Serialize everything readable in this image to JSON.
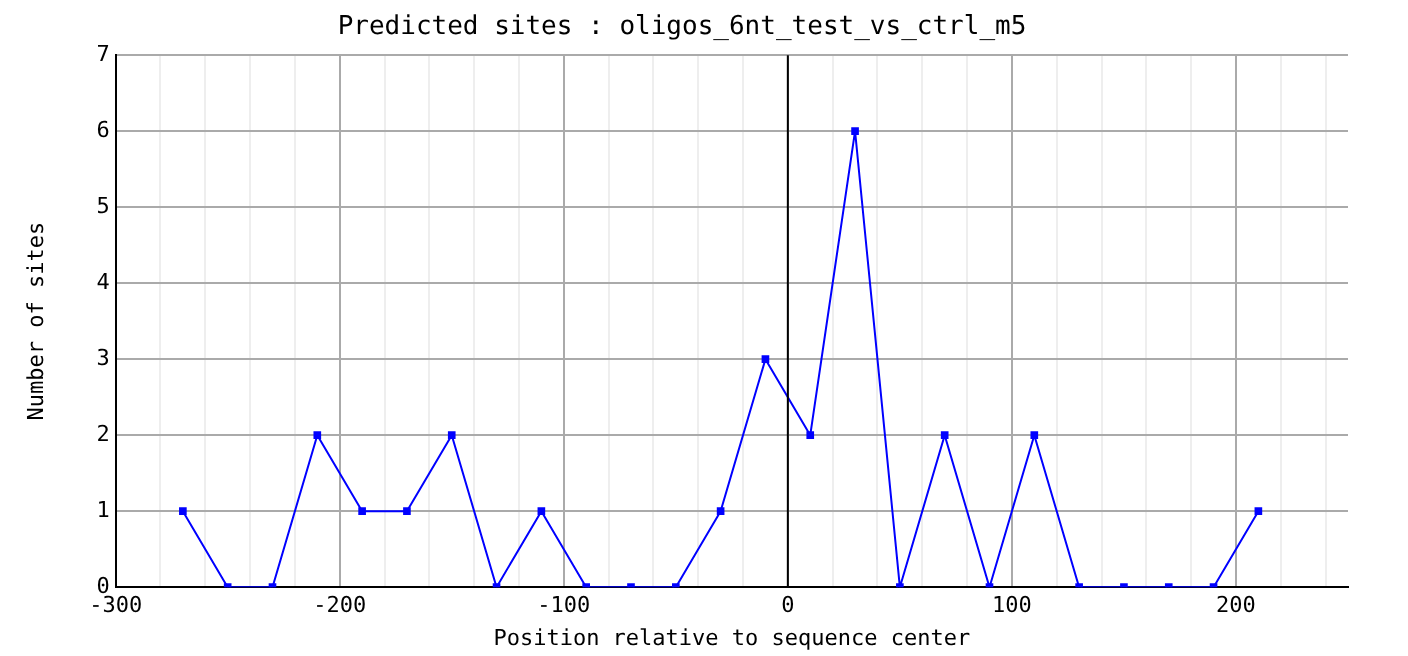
{
  "chart_data": {
    "type": "line",
    "title": "Predicted sites : oligos_6nt_test_vs_ctrl_m5",
    "xlabel": "Position relative to sequence center",
    "ylabel": "Number of sites",
    "x": [
      -270,
      -250,
      -230,
      -210,
      -190,
      -170,
      -150,
      -130,
      -110,
      -90,
      -70,
      -50,
      -30,
      -10,
      10,
      30,
      50,
      70,
      90,
      110,
      130,
      150,
      170,
      190,
      210
    ],
    "series": [
      {
        "color": "#0000ff",
        "values": [
          1,
          0,
          0,
          2,
          1,
          1,
          2,
          0,
          1,
          0,
          0,
          0,
          1,
          3,
          2,
          6,
          0,
          2,
          0,
          2,
          0,
          0,
          0,
          0,
          1
        ]
      }
    ],
    "xlim": [
      -300,
      250
    ],
    "xticks": [
      -300,
      {
        "value": -280,
        "label": null
      },
      {
        "value": -260,
        "label": null
      },
      {
        "value": -240,
        "label": null
      },
      {
        "value": -220,
        "label": null
      },
      -200,
      {
        "value": -180,
        "label": null
      },
      {
        "value": -160,
        "label": null
      },
      {
        "value": -140,
        "label": null
      },
      {
        "value": -120,
        "label": null
      },
      -100,
      {
        "value": -80,
        "label": null
      },
      {
        "value": -60,
        "label": null
      },
      {
        "value": -40,
        "label": null
      },
      {
        "value": -20,
        "label": null
      },
      0,
      {
        "value": 20,
        "label": null
      },
      {
        "value": 40,
        "label": null
      },
      {
        "value": 60,
        "label": null
      },
      {
        "value": 80,
        "label": null
      },
      100,
      {
        "value": 120,
        "label": null
      },
      {
        "value": 140,
        "label": null
      },
      {
        "value": 160,
        "label": null
      },
      {
        "value": 180,
        "label": null
      },
      200,
      {
        "value": 220,
        "label": null
      },
      {
        "value": 240,
        "label": null
      }
    ],
    "ylim": [
      0,
      7
    ],
    "yticks": [
      0,
      1,
      2,
      3,
      4,
      5,
      6,
      7
    ],
    "ref_lines": [
      {
        "axis": "x",
        "value": 0,
        "color": "#000000"
      }
    ],
    "grid": true,
    "legend": false,
    "marker": "square",
    "line_style": "solid"
  }
}
